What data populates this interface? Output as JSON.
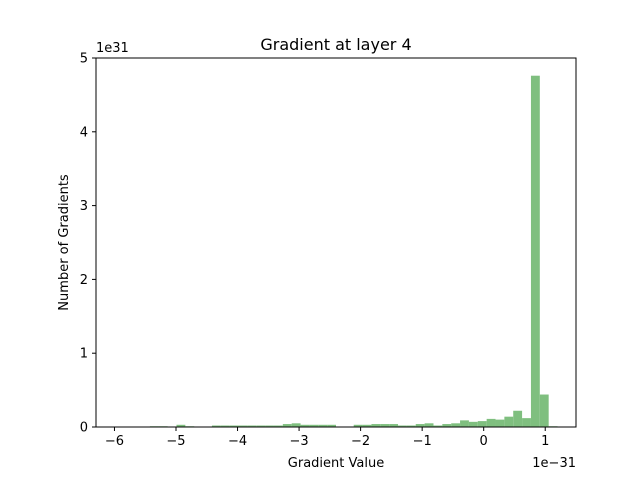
{
  "chart_data": {
    "type": "bar",
    "title": "Gradient at layer 4",
    "xlabel": "Gradient Value",
    "ylabel": "Number of Gradients",
    "x_offset_text": "1e−31",
    "y_offset_text": "1e31",
    "x_scale_exponent": -31,
    "y_scale_exponent": 31,
    "xlim": [
      -6.3,
      1.5
    ],
    "ylim": [
      0,
      5
    ],
    "x_ticks": [
      -6,
      -5,
      -4,
      -3,
      -2,
      -1,
      0,
      1
    ],
    "x_tick_labels": [
      "−6",
      "−5",
      "−4",
      "−3",
      "−2",
      "−1",
      "0",
      "1"
    ],
    "y_ticks": [
      0,
      1,
      2,
      3,
      4,
      5
    ],
    "y_tick_labels": [
      "0",
      "1",
      "2",
      "3",
      "4",
      "5"
    ],
    "bar_color": "#7fbf7f",
    "grid": false,
    "bins": {
      "start": -6.0,
      "width": 0.144,
      "values": [
        0,
        0,
        0,
        0,
        0.01,
        0.01,
        0,
        0.03,
        0.01,
        0,
        0,
        0.02,
        0.02,
        0.02,
        0.02,
        0.02,
        0.02,
        0.02,
        0.02,
        0.04,
        0.05,
        0.03,
        0.03,
        0.03,
        0.03,
        0,
        0,
        0.03,
        0.03,
        0.04,
        0.04,
        0.04,
        0.02,
        0.02,
        0.04,
        0.05,
        0.02,
        0.04,
        0.05,
        0.09,
        0.07,
        0.08,
        0.11,
        0.1,
        0.14,
        0.22,
        0.12,
        4.76,
        0.44,
        0.01,
        0,
        0,
        0,
        0,
        0,
        0,
        0,
        0,
        0,
        0,
        0,
        0,
        0,
        0,
        0,
        0,
        0,
        0,
        0,
        0,
        0,
        0
      ]
    }
  }
}
